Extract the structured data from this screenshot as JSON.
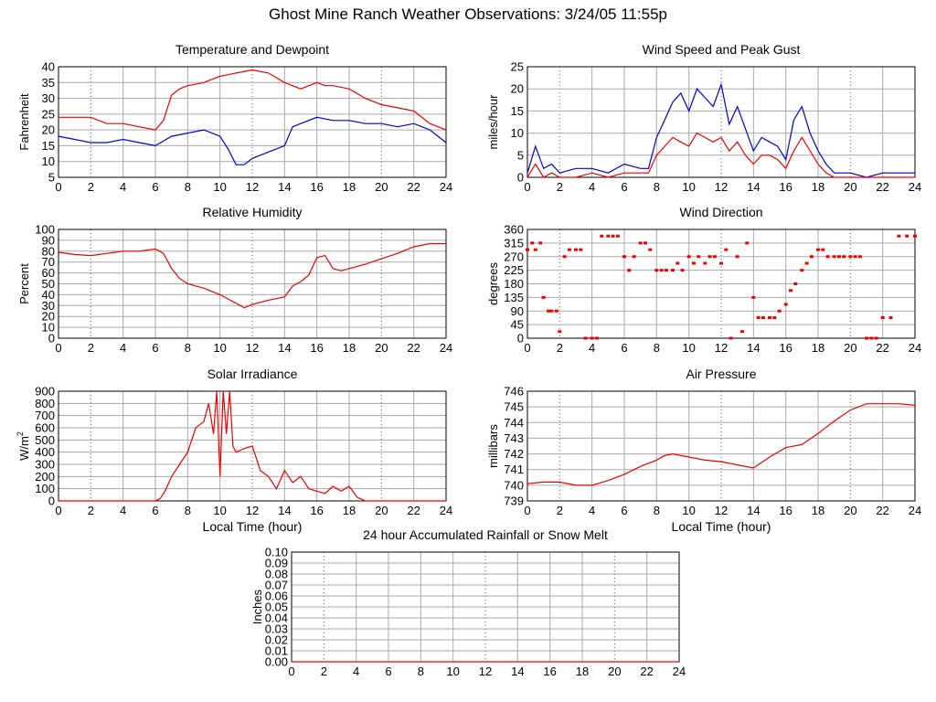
{
  "page": {
    "title": "Ghost Mine Ranch Weather Observations: 3/24/05 11:55p"
  },
  "colors": {
    "red": "#ee0000",
    "blue": "#0000cc",
    "grid": "#aaaaaa",
    "major_grid": "#555555"
  },
  "chart_data": [
    {
      "id": "temp",
      "type": "line",
      "title": "Temperature and Dewpoint",
      "xlabel": "",
      "ylabel": "Fahrenheit",
      "xlim": [
        0,
        24
      ],
      "ylim": [
        5,
        40
      ],
      "xticks": [
        0,
        2,
        4,
        6,
        8,
        10,
        12,
        14,
        16,
        18,
        20,
        22,
        24
      ],
      "yticks": [
        5,
        10,
        15,
        20,
        25,
        30,
        35,
        40
      ],
      "grid": true,
      "series": [
        {
          "color": "#ee0000",
          "style": "line",
          "x": [
            0,
            1,
            2,
            3,
            4,
            5,
            6,
            6.5,
            7,
            7.5,
            8,
            9,
            10,
            11,
            12,
            13,
            14,
            15,
            16,
            16.5,
            17,
            18,
            19,
            20,
            21,
            22,
            23,
            24
          ],
          "y": [
            24,
            24,
            24,
            22,
            22,
            21,
            20,
            23,
            31,
            33,
            34,
            35,
            37,
            38,
            39,
            38,
            35,
            33,
            35,
            34,
            34,
            33,
            30,
            28,
            27,
            26,
            22,
            20
          ]
        },
        {
          "color": "#0000cc",
          "style": "line",
          "x": [
            0,
            1,
            2,
            3,
            4,
            5,
            6,
            7,
            8,
            9,
            10,
            10.5,
            11,
            11.5,
            12,
            13,
            14,
            14.5,
            15,
            16,
            17,
            18,
            19,
            20,
            21,
            22,
            23,
            24
          ],
          "y": [
            18,
            17,
            16,
            16,
            17,
            16,
            15,
            18,
            19,
            20,
            18,
            14,
            9,
            9,
            11,
            13,
            15,
            21,
            22,
            24,
            23,
            23,
            22,
            22,
            21,
            22,
            20,
            16
          ]
        }
      ]
    },
    {
      "id": "wind",
      "type": "line",
      "title": "Wind Speed and Peak Gust",
      "xlabel": "",
      "ylabel": "miles/hour",
      "xlim": [
        0,
        24
      ],
      "ylim": [
        0,
        25
      ],
      "xticks": [
        0,
        2,
        4,
        6,
        8,
        10,
        12,
        14,
        16,
        18,
        20,
        22,
        24
      ],
      "yticks": [
        0,
        5,
        10,
        15,
        20,
        25
      ],
      "grid": true,
      "series": [
        {
          "color": "#0000cc",
          "style": "line",
          "x": [
            0,
            0.5,
            1,
            1.5,
            2,
            3,
            4,
            5,
            6,
            7,
            7.5,
            8,
            8.5,
            9,
            9.5,
            10,
            10.5,
            11,
            11.5,
            12,
            12.5,
            13,
            13.5,
            14,
            14.5,
            15,
            15.5,
            16,
            16.5,
            17,
            17.5,
            18,
            18.5,
            19,
            20,
            21,
            22,
            23,
            24
          ],
          "y": [
            1,
            7,
            2,
            3,
            1,
            2,
            2,
            1,
            3,
            2,
            2,
            9,
            13,
            17,
            19,
            15,
            20,
            18,
            16,
            21,
            12,
            16,
            11,
            6,
            9,
            8,
            7,
            4,
            13,
            16,
            10,
            6,
            3,
            1,
            1,
            0,
            1,
            1,
            1
          ]
        },
        {
          "color": "#ee0000",
          "style": "line",
          "x": [
            0,
            0.5,
            1,
            1.5,
            2,
            3,
            4,
            5,
            6,
            7,
            7.5,
            8,
            8.5,
            9,
            9.5,
            10,
            10.5,
            11,
            11.5,
            12,
            12.5,
            13,
            13.5,
            14,
            14.5,
            15,
            15.5,
            16,
            16.5,
            17,
            17.5,
            18,
            18.5,
            19,
            20,
            21,
            22,
            23,
            24
          ],
          "y": [
            0,
            3,
            0,
            1,
            0,
            0,
            1,
            0,
            1,
            1,
            1,
            5,
            7,
            9,
            8,
            7,
            10,
            9,
            8,
            9,
            6,
            8,
            5,
            3,
            5,
            5,
            4,
            2,
            6,
            9,
            6,
            3,
            1,
            0,
            0,
            0,
            0,
            0,
            0
          ]
        }
      ]
    },
    {
      "id": "rh",
      "type": "line",
      "title": "Relative Humidity",
      "xlabel": "",
      "ylabel": "Percent",
      "xlim": [
        0,
        24
      ],
      "ylim": [
        0,
        100
      ],
      "xticks": [
        0,
        2,
        4,
        6,
        8,
        10,
        12,
        14,
        16,
        18,
        20,
        22,
        24
      ],
      "yticks": [
        0,
        10,
        20,
        30,
        40,
        50,
        60,
        70,
        80,
        90,
        100
      ],
      "grid": true,
      "series": [
        {
          "color": "#ee0000",
          "style": "line",
          "x": [
            0,
            1,
            2,
            3,
            4,
            5,
            6,
            6.5,
            7,
            7.5,
            8,
            9,
            10,
            11,
            11.5,
            12,
            13,
            14,
            14.5,
            15,
            15.5,
            16,
            16.5,
            17,
            17.5,
            18,
            19,
            20,
            21,
            22,
            23,
            24
          ],
          "y": [
            79,
            77,
            76,
            78,
            80,
            80,
            82,
            78,
            64,
            55,
            50,
            46,
            40,
            32,
            28,
            31,
            35,
            38,
            48,
            52,
            58,
            74,
            76,
            64,
            62,
            64,
            68,
            73,
            78,
            84,
            87,
            87
          ]
        }
      ]
    },
    {
      "id": "wdir",
      "type": "scatter",
      "title": "Wind Direction",
      "xlabel": "",
      "ylabel": "degrees",
      "xlim": [
        0,
        24
      ],
      "ylim": [
        0,
        360
      ],
      "xticks": [
        0,
        2,
        4,
        6,
        8,
        10,
        12,
        14,
        16,
        18,
        20,
        22,
        24
      ],
      "yticks": [
        0,
        45,
        90,
        135,
        180,
        225,
        270,
        315,
        360
      ],
      "grid": true,
      "series": [
        {
          "color": "#ee0000",
          "style": "points",
          "x": [
            0,
            0.3,
            0.5,
            0.8,
            1,
            1.3,
            1.5,
            1.8,
            2,
            2.3,
            2.6,
            3,
            3.3,
            3.6,
            4,
            4.3,
            4.6,
            5,
            5.3,
            5.6,
            6,
            6.3,
            6.6,
            7,
            7.3,
            7.6,
            8,
            8.3,
            8.6,
            9,
            9.3,
            9.6,
            10,
            10.3,
            10.6,
            11,
            11.3,
            11.6,
            12,
            12.3,
            12.6,
            13,
            13.3,
            13.6,
            14,
            14.3,
            14.6,
            15,
            15.3,
            15.6,
            16,
            16.3,
            16.6,
            17,
            17.3,
            17.6,
            18,
            18.3,
            18.6,
            19,
            19.3,
            19.6,
            20,
            20.3,
            20.6,
            21,
            21.3,
            21.6,
            22,
            22.5,
            23,
            23.5,
            24
          ],
          "y": [
            293,
            315,
            293,
            315,
            135,
            90,
            90,
            90,
            22,
            270,
            293,
            293,
            293,
            0,
            0,
            0,
            338,
            338,
            338,
            338,
            270,
            225,
            270,
            315,
            315,
            293,
            225,
            225,
            225,
            225,
            248,
            225,
            270,
            248,
            270,
            248,
            270,
            270,
            248,
            293,
            0,
            270,
            22,
            315,
            135,
            68,
            68,
            68,
            68,
            90,
            112,
            158,
            180,
            225,
            248,
            270,
            293,
            293,
            270,
            270,
            270,
            270,
            270,
            270,
            270,
            0,
            0,
            0,
            68,
            68,
            338,
            338,
            338
          ]
        }
      ]
    },
    {
      "id": "solar",
      "type": "line",
      "title": "Solar Irradiance",
      "xlabel": "Local Time (hour)",
      "ylabel": "W/m",
      "ylabel_sup": "2",
      "xlim": [
        0,
        24
      ],
      "ylim": [
        0,
        900
      ],
      "xticks": [
        0,
        2,
        4,
        6,
        8,
        10,
        12,
        14,
        16,
        18,
        20,
        22,
        24
      ],
      "yticks": [
        0,
        100,
        200,
        300,
        400,
        500,
        600,
        700,
        800,
        900
      ],
      "grid": true,
      "series": [
        {
          "color": "#ee0000",
          "style": "line",
          "x": [
            0,
            2,
            4,
            6,
            6.3,
            6.6,
            7,
            7.5,
            8,
            8.5,
            9,
            9.3,
            9.6,
            9.8,
            10,
            10.2,
            10.4,
            10.6,
            10.8,
            11,
            11.5,
            12,
            12.5,
            13,
            13.5,
            14,
            14.5,
            15,
            15.5,
            16,
            16.5,
            17,
            17.5,
            18,
            18.5,
            19,
            20,
            22,
            24
          ],
          "y": [
            0,
            0,
            0,
            0,
            20,
            80,
            200,
            300,
            400,
            600,
            650,
            800,
            550,
            900,
            200,
            900,
            550,
            900,
            450,
            400,
            430,
            450,
            250,
            200,
            100,
            250,
            150,
            200,
            100,
            80,
            60,
            120,
            80,
            120,
            30,
            0,
            0,
            0,
            0
          ]
        }
      ]
    },
    {
      "id": "pressure",
      "type": "line",
      "title": "Air Pressure",
      "xlabel": "Local Time (hour)",
      "ylabel": "millibars",
      "xlim": [
        0,
        24
      ],
      "ylim": [
        739,
        746
      ],
      "xticks": [
        0,
        2,
        4,
        6,
        8,
        10,
        12,
        14,
        16,
        18,
        20,
        22,
        24
      ],
      "yticks": [
        739,
        740,
        741,
        742,
        743,
        744,
        745,
        746
      ],
      "grid": true,
      "series": [
        {
          "color": "#ee0000",
          "style": "line",
          "x": [
            0,
            1,
            2,
            3,
            4,
            5,
            6,
            7,
            8,
            8.5,
            9,
            10,
            11,
            12,
            13,
            14,
            15,
            16,
            17,
            18,
            19,
            20,
            21,
            22,
            23,
            24
          ],
          "y": [
            740.1,
            740.2,
            740.2,
            740,
            740,
            740.3,
            740.7,
            741.2,
            741.6,
            741.9,
            742,
            741.8,
            741.6,
            741.5,
            741.3,
            741.1,
            741.8,
            742.4,
            742.6,
            743.3,
            744.1,
            744.8,
            745.2,
            745.2,
            745.2,
            745.1
          ]
        }
      ]
    },
    {
      "id": "rain",
      "type": "line",
      "title": "24 hour Accumulated Rainfall or Snow Melt",
      "xlabel": "",
      "ylabel": "Inches",
      "xlim": [
        0,
        24
      ],
      "ylim": [
        0,
        0.1
      ],
      "xticks": [
        0,
        2,
        4,
        6,
        8,
        10,
        12,
        14,
        16,
        18,
        20,
        22,
        24
      ],
      "yticks": [
        "0.00",
        "0.01",
        "0.02",
        "0.03",
        "0.04",
        "0.05",
        "0.06",
        "0.07",
        "0.08",
        "0.09",
        "0.10"
      ],
      "grid": true,
      "series": [
        {
          "color": "#ee0000",
          "style": "line",
          "x": [
            0,
            24
          ],
          "y": [
            0,
            0
          ]
        }
      ]
    }
  ]
}
